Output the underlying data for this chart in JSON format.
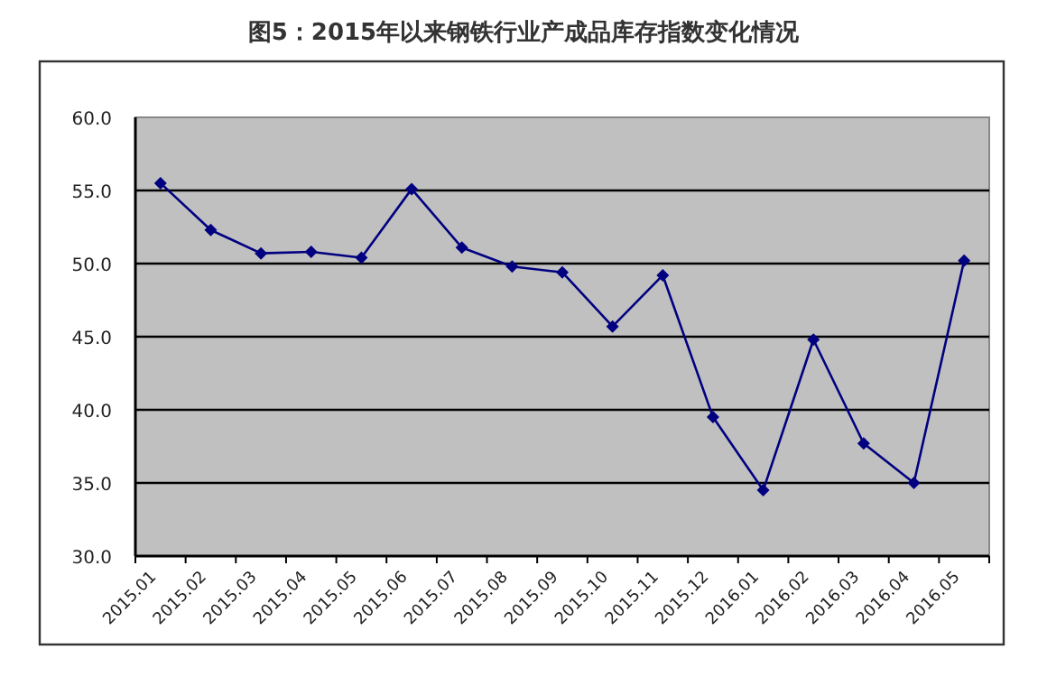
{
  "chart_data": {
    "type": "line",
    "title": "图5：2015年以来钢铁行业产成品库存指数变化情况",
    "categories": [
      "2015.01",
      "2015.02",
      "2015.03",
      "2015.04",
      "2015.05",
      "2015.06",
      "2015.07",
      "2015.08",
      "2015.09",
      "2015.10",
      "2015.11",
      "2015.12",
      "2016.01",
      "2016.02",
      "2016.03",
      "2016.04",
      "2016.05"
    ],
    "series": [
      {
        "color": "#000080",
        "values": [
          55.5,
          52.3,
          50.7,
          50.8,
          50.4,
          55.1,
          51.1,
          49.8,
          49.4,
          45.7,
          49.2,
          39.5,
          34.5,
          44.8,
          37.7,
          35.0,
          50.2
        ]
      }
    ],
    "ylim": [
      30,
      60
    ],
    "yticks": [
      {
        "value": 30,
        "label": "30.0"
      },
      {
        "value": 35,
        "label": "35.0"
      },
      {
        "value": 40,
        "label": "40.0"
      },
      {
        "value": 45,
        "label": "45.0"
      },
      {
        "value": 50,
        "label": "50.0"
      },
      {
        "value": 55,
        "label": "55.0"
      },
      {
        "value": 60,
        "label": "60.0"
      }
    ],
    "grid": "y",
    "marker": "diamond",
    "line_style": "solid"
  }
}
